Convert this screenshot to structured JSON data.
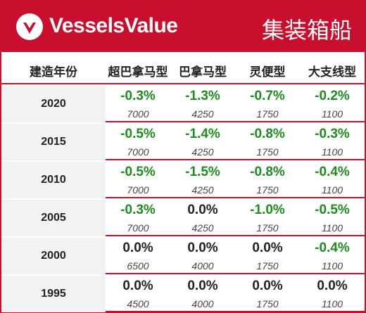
{
  "header": {
    "brand": "VesselsValue",
    "category": "集装箱船",
    "colors": {
      "brand_red": "#c8102e",
      "negative_green": "#1e8c1e",
      "year_bg": "#f2f2f2"
    },
    "logo_icon": "vesselsvalue-logo-icon"
  },
  "columns": [
    "建造年份",
    "超巴拿马型",
    "巴拿马型",
    "灵便型",
    "大支线型"
  ],
  "rows": [
    {
      "year": "2020",
      "cells": [
        {
          "pct": "-0.3%",
          "value": "7000"
        },
        {
          "pct": "-1.3%",
          "value": "4250"
        },
        {
          "pct": "-0.7%",
          "value": "1750"
        },
        {
          "pct": "-0.2%",
          "value": "1100"
        }
      ]
    },
    {
      "year": "2015",
      "cells": [
        {
          "pct": "-0.5%",
          "value": "7000"
        },
        {
          "pct": "-1.4%",
          "value": "4250"
        },
        {
          "pct": "-0.8%",
          "value": "1750"
        },
        {
          "pct": "-0.3%",
          "value": "1100"
        }
      ]
    },
    {
      "year": "2010",
      "cells": [
        {
          "pct": "-0.5%",
          "value": "7000"
        },
        {
          "pct": "-1.5%",
          "value": "4250"
        },
        {
          "pct": "-0.8%",
          "value": "1750"
        },
        {
          "pct": "-0.4%",
          "value": "1100"
        }
      ]
    },
    {
      "year": "2005",
      "cells": [
        {
          "pct": "-0.3%",
          "value": "7000"
        },
        {
          "pct": "0.0%",
          "value": "4250"
        },
        {
          "pct": "-1.0%",
          "value": "1750"
        },
        {
          "pct": "-0.5%",
          "value": "1100"
        }
      ]
    },
    {
      "year": "2000",
      "cells": [
        {
          "pct": "0.0%",
          "value": "6500"
        },
        {
          "pct": "0.0%",
          "value": "4000"
        },
        {
          "pct": "0.0%",
          "value": "1750"
        },
        {
          "pct": "-0.4%",
          "value": "1100"
        }
      ]
    },
    {
      "year": "1995",
      "cells": [
        {
          "pct": "0.0%",
          "value": "4500"
        },
        {
          "pct": "0.0%",
          "value": "4000"
        },
        {
          "pct": "0.0%",
          "value": "1750"
        },
        {
          "pct": "0.0%",
          "value": "1100"
        }
      ]
    }
  ]
}
